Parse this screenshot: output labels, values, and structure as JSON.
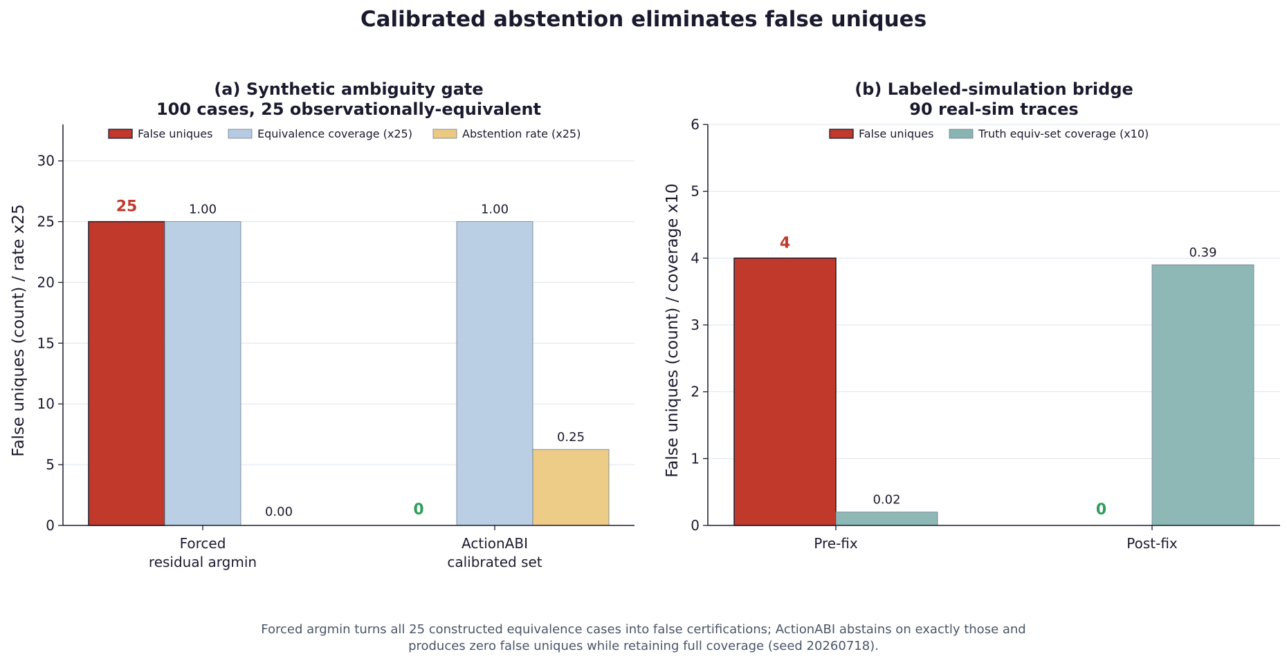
{
  "suptitle": "Calibrated abstention eliminates false uniques",
  "caption": [
    "Forced argmin turns all 25 constructed equivalence cases into false certifications; ActionABI abstains on exactly those and",
    "produces zero false uniques while retaining full coverage (seed 20260718)."
  ],
  "colors": {
    "false_uniques": "#c0392b",
    "equivalence_coverage": "#b6cbe3",
    "abstention_rate": "#ebc981",
    "truth_coverage": "#88b4b2",
    "zero_label": "#2e9e5b",
    "highlight_label": "#c0392b"
  },
  "chart_data": [
    {
      "type": "bar",
      "title": [
        "(a) Synthetic ambiguity gate",
        "100 cases, 25 observationally-equivalent"
      ],
      "ylabel": "False uniques (count)  /  rate x25",
      "ylim": [
        0,
        33
      ],
      "yticks": [
        0,
        5,
        10,
        15,
        20,
        25,
        30
      ],
      "grid": true,
      "legend_position": "top",
      "categories": [
        [
          "Forced",
          "residual argmin"
        ],
        [
          "ActionABI",
          "calibrated set"
        ]
      ],
      "series": [
        {
          "name": "False uniques",
          "color_key": "false_uniques",
          "values": [
            25,
            0
          ],
          "labels": [
            "25",
            "0"
          ],
          "label_style": "count"
        },
        {
          "name": "Equivalence coverage (x25)",
          "color_key": "equivalence_coverage",
          "values": [
            25,
            25
          ],
          "labels": [
            "1.00",
            "1.00"
          ],
          "label_style": "rate"
        },
        {
          "name": "Abstention rate (x25)",
          "color_key": "abstention_rate",
          "values": [
            0,
            6.25
          ],
          "labels": [
            "0.00",
            "0.25"
          ],
          "label_style": "rate"
        }
      ]
    },
    {
      "type": "bar",
      "title": [
        "(b) Labeled-simulation bridge",
        "90 real-sim traces"
      ],
      "ylabel": "False uniques (count)  /  coverage x10",
      "ylim": [
        0,
        6
      ],
      "yticks": [
        0,
        1,
        2,
        3,
        4,
        5,
        6
      ],
      "grid": true,
      "legend_position": "top",
      "categories": [
        [
          "Pre-fix"
        ],
        [
          "Post-fix"
        ]
      ],
      "series": [
        {
          "name": "False uniques",
          "color_key": "false_uniques",
          "values": [
            4,
            0
          ],
          "labels": [
            "4",
            "0"
          ],
          "label_style": "count"
        },
        {
          "name": "Truth equiv-set coverage (x10)",
          "color_key": "truth_coverage",
          "values": [
            0.2,
            3.9
          ],
          "labels": [
            "0.02",
            "0.39"
          ],
          "label_style": "rate"
        }
      ]
    }
  ]
}
